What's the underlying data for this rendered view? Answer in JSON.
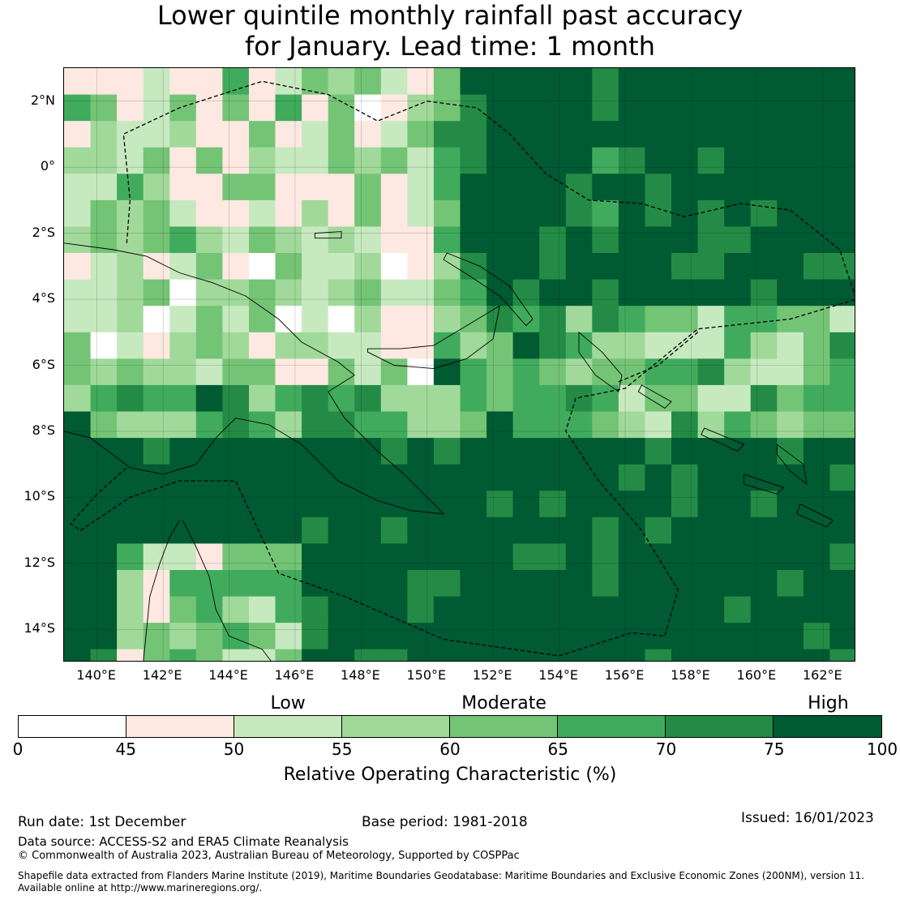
{
  "title": {
    "line1": "Lower quintile monthly rainfall past accuracy",
    "line2": "for January. Lead time: 1 month"
  },
  "map": {
    "extent": {
      "lon_min": 139,
      "lon_max": 163,
      "lat_min": -15,
      "lat_max": 3
    },
    "x_ticks": [
      140,
      142,
      144,
      146,
      148,
      150,
      152,
      154,
      156,
      158,
      160,
      162
    ],
    "x_tick_labels": [
      "140°E",
      "142°E",
      "144°E",
      "146°E",
      "148°E",
      "150°E",
      "152°E",
      "154°E",
      "156°E",
      "158°E",
      "160°E",
      "162°E"
    ],
    "y_ticks": [
      2,
      0,
      -2,
      -4,
      -6,
      -8,
      -10,
      -12,
      -14
    ],
    "y_tick_labels": [
      "2°N",
      "0°",
      "2°S",
      "4°S",
      "6°S",
      "8°S",
      "10°S",
      "12°S",
      "14°S"
    ],
    "cell_size_deg": 0.8
  },
  "legend": {
    "categories": [
      {
        "label": "Low",
        "at": 52.5
      },
      {
        "label": "Moderate",
        "at": 62.5
      },
      {
        "label": "High",
        "at": 87.5
      }
    ],
    "bins": [
      {
        "from": 0,
        "to": 45,
        "color": "#ffffff"
      },
      {
        "from": 45,
        "to": 50,
        "color": "#fde9e1"
      },
      {
        "from": 50,
        "to": 55,
        "color": "#c7e9c0"
      },
      {
        "from": 55,
        "to": 60,
        "color": "#a1d99b"
      },
      {
        "from": 60,
        "to": 65,
        "color": "#74c476"
      },
      {
        "from": 65,
        "to": 70,
        "color": "#41ab5d"
      },
      {
        "from": 70,
        "to": 75,
        "color": "#238b45"
      },
      {
        "from": 75,
        "to": 100,
        "color": "#005a32"
      }
    ],
    "tick_labels": [
      "0",
      "45",
      "50",
      "55",
      "60",
      "65",
      "70",
      "75",
      "100"
    ],
    "axis_label": "Relative Operating Characteristic (%)"
  },
  "footer": {
    "run_date": "Run date: 1st December",
    "base_period": "Base period: 1981-2018",
    "issued": "Issued: 16/01/2023",
    "data_source": "Data source: ACCESS-S2 and ERA5 Climate Reanalysis",
    "copyright": "© Commonwealth of Australia 2023, Australian Bureau of Meteorology, Supported by COSPPac",
    "shapefile_line1": "Shapefile data extracted from Flanders Marine Institute (2019), Maritime Boundaries Geodatabase: Maritime Boundaries and Exclusive Economic Zones (200NM), version 11.",
    "shapefile_line2": "Available online at http://www.marineregions.org/."
  }
}
